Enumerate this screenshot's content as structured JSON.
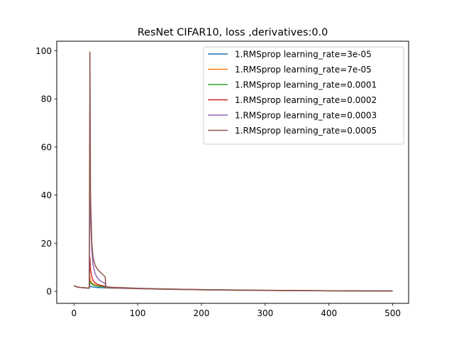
{
  "colors": {
    "background": "#ffffff",
    "axis": "#000000",
    "legend_border": "#cccccc"
  },
  "chart_data": {
    "type": "line",
    "title": "ResNet CIFAR10, loss ,derivatives:0.0",
    "xlabel": "",
    "ylabel": "",
    "xlim": [
      -27,
      525
    ],
    "ylim": [
      -5,
      104
    ],
    "xticks": [
      0,
      100,
      200,
      300,
      400,
      500
    ],
    "yticks": [
      0,
      20,
      40,
      60,
      80,
      100
    ],
    "grid": false,
    "legend_position": "top-right",
    "series": [
      {
        "name": "1.RMSprop learning_rate=3e-05",
        "color": "#1f77b4",
        "x": [
          0,
          5,
          10,
          15,
          20,
          24,
          25,
          26,
          28,
          30,
          33,
          36,
          40,
          45,
          49,
          50,
          51,
          55,
          60,
          80,
          100,
          150,
          200,
          250,
          300,
          350,
          400,
          450,
          500
        ],
        "y": [
          2.3,
          1.8,
          1.6,
          1.5,
          1.4,
          1.35,
          2.2,
          2.0,
          1.9,
          1.8,
          1.7,
          1.6,
          1.55,
          1.5,
          1.45,
          1.4,
          1.4,
          1.38,
          1.35,
          1.25,
          1.1,
          0.85,
          0.65,
          0.5,
          0.38,
          0.3,
          0.22,
          0.18,
          0.15
        ]
      },
      {
        "name": "1.RMSprop learning_rate=7e-05",
        "color": "#ff7f0e",
        "x": [
          0,
          5,
          10,
          15,
          20,
          24,
          25,
          26,
          28,
          30,
          33,
          36,
          40,
          45,
          49,
          50,
          51,
          55,
          60,
          80,
          100,
          150,
          200,
          250,
          300,
          350,
          400,
          450,
          500
        ],
        "y": [
          2.3,
          1.8,
          1.6,
          1.5,
          1.4,
          1.35,
          6.0,
          4.5,
          3.6,
          3.1,
          2.7,
          2.4,
          2.2,
          2.0,
          1.9,
          1.5,
          1.45,
          1.42,
          1.4,
          1.28,
          1.12,
          0.85,
          0.62,
          0.48,
          0.37,
          0.28,
          0.2,
          0.16,
          0.13
        ]
      },
      {
        "name": "1.RMSprop learning_rate=0.0001",
        "color": "#2ca02c",
        "x": [
          0,
          5,
          10,
          15,
          20,
          24,
          25,
          26,
          28,
          30,
          33,
          36,
          40,
          45,
          49,
          50,
          51,
          55,
          60,
          80,
          100,
          150,
          200,
          250,
          300,
          350,
          400,
          450,
          500
        ],
        "y": [
          2.3,
          1.8,
          1.6,
          1.5,
          1.4,
          1.35,
          4.0,
          3.5,
          3.0,
          2.7,
          2.4,
          2.2,
          2.05,
          1.95,
          1.85,
          1.5,
          1.45,
          1.42,
          1.4,
          1.3,
          1.15,
          0.88,
          0.65,
          0.5,
          0.4,
          0.3,
          0.22,
          0.17,
          0.14
        ]
      },
      {
        "name": "1.RMSprop learning_rate=0.0002",
        "color": "#d62728",
        "x": [
          0,
          5,
          10,
          15,
          20,
          24,
          25,
          26,
          28,
          30,
          33,
          36,
          40,
          45,
          49,
          50,
          51,
          55,
          60,
          80,
          100,
          150,
          200,
          250,
          300,
          350,
          400,
          450,
          500
        ],
        "y": [
          2.3,
          1.8,
          1.6,
          1.5,
          1.4,
          1.35,
          14.0,
          9.0,
          6.0,
          4.6,
          3.6,
          3.0,
          2.6,
          2.3,
          2.1,
          1.6,
          1.55,
          1.5,
          1.45,
          1.32,
          1.16,
          0.9,
          0.67,
          0.52,
          0.4,
          0.31,
          0.23,
          0.18,
          0.15
        ]
      },
      {
        "name": "1.RMSprop learning_rate=0.0003",
        "color": "#9467bd",
        "x": [
          0,
          5,
          10,
          15,
          20,
          24,
          25,
          26,
          28,
          30,
          33,
          36,
          40,
          45,
          49,
          50,
          51,
          55,
          60,
          80,
          100,
          150,
          200,
          250,
          300,
          350,
          400,
          450,
          500
        ],
        "y": [
          2.3,
          1.8,
          1.6,
          1.5,
          1.4,
          1.35,
          50.0,
          30.0,
          17.0,
          11.0,
          7.5,
          5.8,
          4.6,
          3.8,
          3.3,
          1.7,
          1.65,
          1.6,
          1.55,
          1.4,
          1.2,
          0.92,
          0.7,
          0.54,
          0.42,
          0.32,
          0.24,
          0.19,
          0.16
        ]
      },
      {
        "name": "1.RMSprop learning_rate=0.0005",
        "color": "#8c564b",
        "x": [
          0,
          5,
          10,
          15,
          20,
          24,
          25,
          26,
          28,
          30,
          33,
          36,
          40,
          45,
          49,
          50,
          51,
          55,
          60,
          80,
          100,
          150,
          200,
          250,
          300,
          350,
          400,
          450,
          500
        ],
        "y": [
          2.3,
          1.8,
          1.6,
          1.5,
          1.4,
          1.35,
          99.5,
          40.0,
          20.0,
          14.0,
          11.0,
          9.5,
          8.3,
          7.0,
          6.0,
          1.9,
          1.85,
          1.8,
          1.7,
          1.5,
          1.28,
          0.95,
          0.72,
          0.56,
          0.43,
          0.33,
          0.25,
          0.2,
          0.17
        ]
      }
    ]
  }
}
